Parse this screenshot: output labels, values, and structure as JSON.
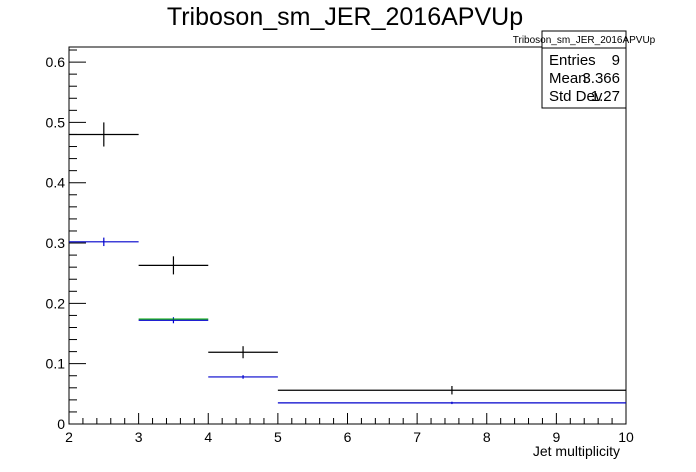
{
  "chart_data": {
    "type": "scatter",
    "title": "Triboson_sm_JER_2016APVUp",
    "xlabel": "Jet multiplicity",
    "ylabel": "",
    "xlim": [
      2,
      10
    ],
    "ylim": [
      0,
      0.625
    ],
    "x_ticks": [
      "2",
      "3",
      "4",
      "5",
      "6",
      "7",
      "8",
      "9",
      "10"
    ],
    "y_ticks": [
      "0",
      "0.1",
      "0.2",
      "0.3",
      "0.4",
      "0.5",
      "0.6"
    ],
    "grid": false,
    "legend": "none",
    "series": [
      {
        "color": "#000000",
        "points": [
          {
            "xlow": 2,
            "xhigh": 3,
            "x": 2.5,
            "y": 0.48,
            "yerr": 0.02
          },
          {
            "xlow": 3,
            "xhigh": 4,
            "x": 3.5,
            "y": 0.263,
            "yerr": 0.015
          },
          {
            "xlow": 4,
            "xhigh": 5,
            "x": 4.5,
            "y": 0.119,
            "yerr": 0.01
          },
          {
            "xlow": 5,
            "xhigh": 10,
            "x": 7.5,
            "y": 0.056,
            "yerr": 0.007
          }
        ]
      },
      {
        "color": "#0000cc",
        "points": [
          {
            "xlow": 2,
            "xhigh": 3,
            "x": 2.5,
            "y": 0.302,
            "yerr": 0.007
          },
          {
            "xlow": 3,
            "xhigh": 4,
            "x": 3.5,
            "y": 0.172,
            "yerr": 0.005
          },
          {
            "xlow": 4,
            "xhigh": 5,
            "x": 4.5,
            "y": 0.078,
            "yerr": 0.003
          },
          {
            "xlow": 5,
            "xhigh": 10,
            "x": 7.5,
            "y": 0.035,
            "yerr": 0.002
          }
        ]
      },
      {
        "color": "#00aa00",
        "points": [
          {
            "xlow": 3,
            "xhigh": 4,
            "x": 3.5,
            "y": 0.174,
            "yerr": 0
          }
        ]
      }
    ],
    "stats": {
      "title": "Triboson_sm_JER_2016APVUp",
      "rows": [
        {
          "label": "Entries",
          "value": "9"
        },
        {
          "label": "Mean",
          "value": "3.366"
        },
        {
          "label": "Std Dev",
          "value": "1.27"
        }
      ]
    }
  }
}
